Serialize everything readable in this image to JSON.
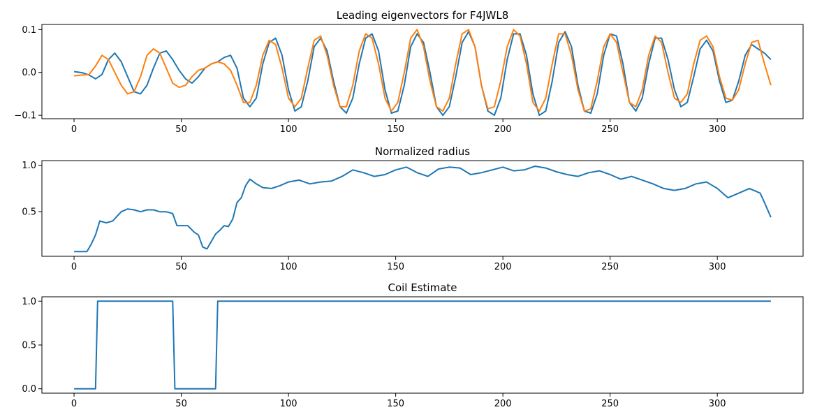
{
  "chart_data": [
    {
      "type": "line",
      "title": "Leading eigenvectors for F4JWL8",
      "xlabel": "",
      "ylabel": "",
      "xlim": [
        -15,
        340
      ],
      "ylim": [
        -0.108,
        0.112
      ],
      "xticks": [
        0,
        50,
        100,
        150,
        200,
        250,
        300
      ],
      "yticks": [
        -0.1,
        0.0,
        0.1
      ],
      "ytick_labels": [
        "−0.1",
        "0.0",
        "0.1"
      ],
      "grid": false,
      "series": [
        {
          "color": "#1f77b4",
          "x": [
            0,
            4,
            7,
            10,
            13,
            16,
            19,
            22,
            25,
            28,
            31,
            34,
            37,
            40,
            43,
            46,
            49,
            52,
            55,
            58,
            61,
            64,
            67,
            70,
            73,
            76,
            79,
            82,
            85,
            88,
            91,
            94,
            97,
            100,
            103,
            106,
            109,
            112,
            115,
            118,
            121,
            124,
            127,
            130,
            133,
            136,
            139,
            142,
            145,
            148,
            151,
            154,
            157,
            160,
            163,
            166,
            169,
            172,
            175,
            178,
            181,
            184,
            187,
            190,
            193,
            196,
            199,
            202,
            205,
            208,
            211,
            214,
            217,
            220,
            223,
            226,
            229,
            232,
            235,
            238,
            241,
            244,
            247,
            250,
            253,
            256,
            259,
            262,
            265,
            268,
            271,
            274,
            277,
            280,
            283,
            286,
            289,
            292,
            295,
            298,
            301,
            304,
            307,
            310,
            313,
            316,
            319,
            322,
            325
          ],
          "y": [
            0.002,
            -0.001,
            -0.006,
            -0.015,
            -0.005,
            0.03,
            0.045,
            0.025,
            -0.01,
            -0.045,
            -0.05,
            -0.03,
            0.01,
            0.045,
            0.05,
            0.03,
            0.005,
            -0.015,
            -0.025,
            -0.01,
            0.01,
            0.02,
            0.025,
            0.035,
            0.04,
            0.01,
            -0.06,
            -0.08,
            -0.06,
            0.02,
            0.07,
            0.08,
            0.04,
            -0.04,
            -0.09,
            -0.08,
            -0.02,
            0.06,
            0.08,
            0.05,
            -0.02,
            -0.08,
            -0.095,
            -0.06,
            0.02,
            0.08,
            0.09,
            0.05,
            -0.04,
            -0.095,
            -0.09,
            -0.03,
            0.06,
            0.09,
            0.07,
            0.0,
            -0.08,
            -0.1,
            -0.08,
            -0.01,
            0.07,
            0.095,
            0.06,
            -0.03,
            -0.09,
            -0.1,
            -0.06,
            0.03,
            0.09,
            0.09,
            0.04,
            -0.05,
            -0.1,
            -0.09,
            -0.02,
            0.07,
            0.095,
            0.06,
            -0.03,
            -0.09,
            -0.095,
            -0.05,
            0.04,
            0.09,
            0.085,
            0.02,
            -0.07,
            -0.09,
            -0.06,
            0.02,
            0.08,
            0.08,
            0.03,
            -0.04,
            -0.08,
            -0.07,
            -0.01,
            0.055,
            0.075,
            0.05,
            -0.02,
            -0.07,
            -0.065,
            -0.02,
            0.04,
            0.065,
            0.055,
            0.045,
            0.03
          ]
        },
        {
          "color": "#ff7f0e",
          "x": [
            0,
            4,
            7,
            10,
            13,
            16,
            19,
            22,
            25,
            28,
            31,
            34,
            37,
            40,
            43,
            46,
            49,
            52,
            55,
            58,
            61,
            64,
            67,
            70,
            73,
            76,
            79,
            82,
            85,
            88,
            91,
            94,
            97,
            100,
            103,
            106,
            109,
            112,
            115,
            118,
            121,
            124,
            127,
            130,
            133,
            136,
            139,
            142,
            145,
            148,
            151,
            154,
            157,
            160,
            163,
            166,
            169,
            172,
            175,
            178,
            181,
            184,
            187,
            190,
            193,
            196,
            199,
            202,
            205,
            208,
            211,
            214,
            217,
            220,
            223,
            226,
            229,
            232,
            235,
            238,
            241,
            244,
            247,
            250,
            253,
            256,
            259,
            262,
            265,
            268,
            271,
            274,
            277,
            280,
            283,
            286,
            289,
            292,
            295,
            298,
            301,
            304,
            307,
            310,
            313,
            316,
            319,
            322,
            325
          ],
          "y": [
            -0.008,
            -0.006,
            -0.005,
            0.015,
            0.04,
            0.03,
            0.0,
            -0.03,
            -0.05,
            -0.045,
            -0.01,
            0.04,
            0.055,
            0.045,
            0.01,
            -0.025,
            -0.035,
            -0.03,
            -0.01,
            0.005,
            0.01,
            0.02,
            0.025,
            0.02,
            0.005,
            -0.03,
            -0.07,
            -0.07,
            -0.03,
            0.04,
            0.075,
            0.065,
            0.01,
            -0.06,
            -0.08,
            -0.06,
            0.01,
            0.075,
            0.085,
            0.04,
            -0.03,
            -0.08,
            -0.08,
            -0.03,
            0.05,
            0.09,
            0.08,
            0.02,
            -0.06,
            -0.09,
            -0.07,
            0.0,
            0.08,
            0.1,
            0.06,
            -0.02,
            -0.08,
            -0.09,
            -0.06,
            0.02,
            0.09,
            0.1,
            0.06,
            -0.03,
            -0.085,
            -0.08,
            -0.02,
            0.06,
            0.1,
            0.085,
            0.02,
            -0.07,
            -0.09,
            -0.06,
            0.02,
            0.09,
            0.09,
            0.04,
            -0.04,
            -0.09,
            -0.085,
            -0.02,
            0.06,
            0.09,
            0.07,
            0.0,
            -0.07,
            -0.08,
            -0.04,
            0.04,
            0.085,
            0.07,
            0.0,
            -0.06,
            -0.07,
            -0.05,
            0.02,
            0.075,
            0.085,
            0.06,
            -0.01,
            -0.06,
            -0.065,
            -0.04,
            0.02,
            0.07,
            0.075,
            0.02,
            -0.03
          ]
        }
      ]
    },
    {
      "type": "line",
      "title": "Normalized radius",
      "xlabel": "",
      "ylabel": "",
      "xlim": [
        -15,
        340
      ],
      "ylim": [
        0.02,
        1.05
      ],
      "xticks": [
        0,
        50,
        100,
        150,
        200,
        250,
        300
      ],
      "yticks": [
        0.5,
        1.0
      ],
      "ytick_labels": [
        "0.5",
        "1.0"
      ],
      "grid": false,
      "series": [
        {
          "color": "#1f77b4",
          "x": [
            0,
            3,
            6,
            8,
            10,
            12,
            15,
            18,
            20,
            22,
            25,
            28,
            31,
            34,
            37,
            40,
            43,
            46,
            48,
            50,
            53,
            56,
            58,
            60,
            62,
            64,
            66,
            68,
            70,
            72,
            74,
            76,
            78,
            80,
            82,
            85,
            88,
            92,
            96,
            100,
            105,
            110,
            115,
            120,
            125,
            130,
            135,
            140,
            145,
            150,
            155,
            160,
            165,
            170,
            175,
            180,
            185,
            190,
            195,
            200,
            205,
            210,
            215,
            220,
            225,
            230,
            235,
            240,
            245,
            250,
            255,
            260,
            265,
            270,
            275,
            280,
            285,
            290,
            295,
            300,
            305,
            310,
            315,
            320,
            322,
            325
          ],
          "y": [
            0.07,
            0.07,
            0.07,
            0.15,
            0.25,
            0.4,
            0.38,
            0.4,
            0.45,
            0.5,
            0.53,
            0.52,
            0.5,
            0.52,
            0.52,
            0.5,
            0.5,
            0.48,
            0.35,
            0.35,
            0.35,
            0.28,
            0.25,
            0.12,
            0.1,
            0.18,
            0.26,
            0.3,
            0.35,
            0.34,
            0.42,
            0.6,
            0.65,
            0.78,
            0.85,
            0.8,
            0.76,
            0.75,
            0.78,
            0.82,
            0.84,
            0.8,
            0.82,
            0.83,
            0.88,
            0.95,
            0.92,
            0.88,
            0.9,
            0.95,
            0.98,
            0.92,
            0.88,
            0.96,
            0.98,
            0.97,
            0.9,
            0.92,
            0.95,
            0.98,
            0.94,
            0.95,
            0.99,
            0.97,
            0.93,
            0.9,
            0.88,
            0.92,
            0.94,
            0.9,
            0.85,
            0.88,
            0.84,
            0.8,
            0.75,
            0.73,
            0.75,
            0.8,
            0.82,
            0.75,
            0.65,
            0.7,
            0.75,
            0.7,
            0.6,
            0.44
          ]
        }
      ]
    },
    {
      "type": "line",
      "title": "Coil Estimate",
      "xlabel": "",
      "ylabel": "",
      "xlim": [
        -15,
        340
      ],
      "ylim": [
        -0.05,
        1.05
      ],
      "xticks": [
        0,
        50,
        100,
        150,
        200,
        250,
        300
      ],
      "yticks": [
        0.0,
        0.5,
        1.0
      ],
      "ytick_labels": [
        "0.0",
        "0.5",
        "1.0"
      ],
      "grid": false,
      "series": [
        {
          "color": "#1f77b4",
          "x": [
            0,
            10,
            11,
            46,
            47,
            66,
            67,
            325
          ],
          "y": [
            0,
            0,
            1,
            1,
            0,
            0,
            1,
            1
          ]
        }
      ]
    }
  ]
}
